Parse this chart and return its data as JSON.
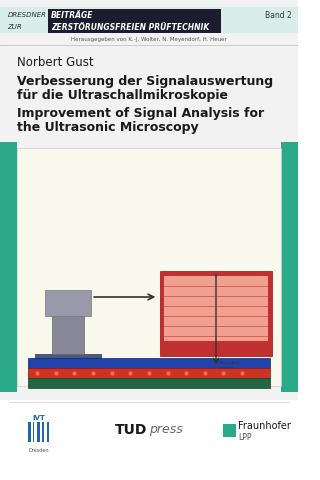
{
  "bg_color": "#f0f0f0",
  "white": "#ffffff",
  "dark_text": "#1a1a1a",
  "header_bar_color": "#1c1c2e",
  "header_text_dresdner": "DRESDNER",
  "header_text_beitrage": "BEITRÄGE",
  "header_text_zur": "ZUR",
  "header_text_zfp": "ZERSTÖRUNGSFREIEN PRÜFTECHNIK",
  "header_band": "Band 2",
  "herausgeber": "Herausgegeben von K.-J. Wolter, N. Meyendorf, H. Heuer",
  "author": "Norbert Gust",
  "title_de_line1": "Verbesserung der Signalauswertung",
  "title_de_line2": "für die Ultraschallmikroskopie",
  "title_en_line1": "Improvement of Signal Analysis for",
  "title_en_line2": "the Ultrasonic Microscopy",
  "image_bg": "#f8f8ec",
  "teal_color": "#2aaa88",
  "teal_dark": "#228866",
  "border_light": "#dddddd",
  "gray_light": "#e8e8e8"
}
